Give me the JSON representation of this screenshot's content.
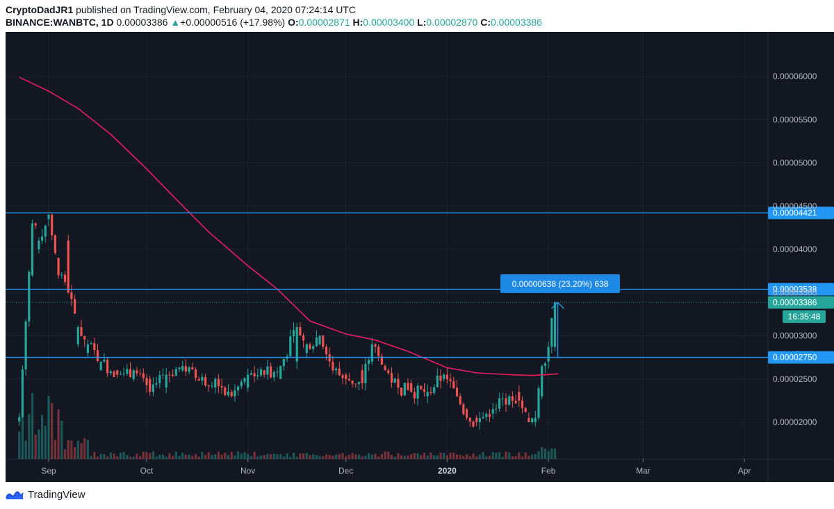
{
  "header": {
    "author": "CryptoDadJR1",
    "published_text": "published on TradingView.com, February 04, 2020 07:24:14 UTC",
    "symbol": "BINANCE:WANBTC, 1D",
    "last_price": "0.00003386",
    "change_arrow": "▲",
    "change": "+0.00000516 (+17.98%)",
    "open_label": "O:",
    "open_value": "0.00002871",
    "high_label": "H:",
    "high_value": "0.00003400",
    "low_label": "L:",
    "low_value": "0.00002870",
    "close_label": "C:",
    "close_value": "0.00003386"
  },
  "footer": {
    "brand": "TradingView",
    "logo_icon": "tradingview-logo-icon"
  },
  "colors": {
    "background": "#131722",
    "grid": "#1e222d",
    "up": "#26a69a",
    "down": "#ef5350",
    "ma_line": "#e91e63",
    "level_line": "#2196f3",
    "measure_tag": "#1e88e5",
    "price_tag": "#26a69a"
  },
  "chart_data": {
    "type": "candlestick",
    "title": "BINANCE:WANBTC, 1D",
    "y_ticks": [
      "0.00006000",
      "0.00005500",
      "0.00005000",
      "0.00004500",
      "0.00004000",
      "0.00003500",
      "0.00003000",
      "0.00002500",
      "0.00002000"
    ],
    "y_tick_values": [
      6e-05,
      5.5e-05,
      5e-05,
      4.5e-05,
      4e-05,
      3.5e-05,
      3e-05,
      2.5e-05,
      2e-05
    ],
    "x_ticks": [
      "Sep",
      "Oct",
      "Nov",
      "Dec",
      "2020",
      "Feb",
      "Mar",
      "Apr"
    ],
    "x_tick_dates": [
      "2019-09-01",
      "2019-10-01",
      "2019-11-01",
      "2019-12-01",
      "2020-01-01",
      "2020-02-01",
      "2020-03-01",
      "2020-04-01"
    ],
    "horizontal_levels": [
      {
        "label": "0.00004421",
        "value": 4.421e-05
      },
      {
        "label": "0.00003538",
        "value": 3.538e-05
      },
      {
        "label": "0.00002750",
        "value": 2.75e-05
      }
    ],
    "last_price_tag": {
      "label": "0.00003386",
      "value": 3.386e-05,
      "countdown": "16:35:48"
    },
    "measure_annotation": "0.00000638 (23.20%) 638",
    "moving_average": [
      [
        "2019-08-23",
        5.99e-05
      ],
      [
        "2019-09-01",
        5.83e-05
      ],
      [
        "2019-09-10",
        5.63e-05
      ],
      [
        "2019-09-20",
        5.33e-05
      ],
      [
        "2019-10-01",
        4.93e-05
      ],
      [
        "2019-10-10",
        4.58e-05
      ],
      [
        "2019-10-20",
        4.2e-05
      ],
      [
        "2019-11-01",
        3.81e-05
      ],
      [
        "2019-11-10",
        3.54e-05
      ],
      [
        "2019-11-20",
        3.17e-05
      ],
      [
        "2019-12-01",
        3.02e-05
      ],
      [
        "2019-12-10",
        2.95e-05
      ],
      [
        "2019-12-20",
        2.82e-05
      ],
      [
        "2020-01-01",
        2.63e-05
      ],
      [
        "2020-01-10",
        2.57e-05
      ],
      [
        "2020-01-20",
        2.55e-05
      ],
      [
        "2020-01-27",
        2.54e-05
      ],
      [
        "2020-02-04",
        2.56e-05
      ]
    ],
    "candle_count": 165,
    "candles_start_date": "2019-08-23",
    "candle_anchors": [
      [
        0,
        2.01e-05,
        2.06e-05
      ],
      [
        4,
        3.7e-05,
        4.3e-05
      ],
      [
        6,
        4e-05,
        4.1e-05
      ],
      [
        9,
        4.35e-05,
        4.4e-05
      ],
      [
        12,
        3.9e-05,
        3.7e-05
      ],
      [
        15,
        4.1e-05,
        3.5e-05
      ],
      [
        18,
        2.9e-05,
        3.1e-05
      ],
      [
        21,
        2.8e-05,
        2.9e-05
      ],
      [
        25,
        2.6e-05,
        2.7e-05
      ],
      [
        30,
        2.6e-05,
        2.55e-05
      ],
      [
        35,
        2.5e-05,
        2.6e-05
      ],
      [
        40,
        2.5e-05,
        2.35e-05
      ],
      [
        45,
        2.4e-05,
        2.55e-05
      ],
      [
        50,
        2.6e-05,
        2.65e-05
      ],
      [
        55,
        2.5e-05,
        2.48e-05
      ],
      [
        60,
        2.4e-05,
        2.5e-05
      ],
      [
        65,
        2.35e-05,
        2.3e-05
      ],
      [
        70,
        2.4e-05,
        2.55e-05
      ],
      [
        75,
        2.6e-05,
        2.55e-05
      ],
      [
        80,
        2.5e-05,
        2.65e-05
      ],
      [
        85,
        2.7e-05,
        3.1e-05
      ],
      [
        88,
        2.8e-05,
        2.9e-05
      ],
      [
        92,
        2.9e-05,
        3e-05
      ],
      [
        96,
        2.7e-05,
        2.6e-05
      ],
      [
        100,
        2.55e-05,
        2.5e-05
      ],
      [
        105,
        2.6e-05,
        2.45e-05
      ],
      [
        108,
        2.7e-05,
        2.9e-05
      ],
      [
        112,
        2.65e-05,
        2.6e-05
      ],
      [
        116,
        2.5e-05,
        2.4e-05
      ],
      [
        120,
        2.45e-05,
        2.35e-05
      ],
      [
        125,
        2.3e-05,
        2.35e-05
      ],
      [
        130,
        2.5e-05,
        2.55e-05
      ],
      [
        134,
        2.4e-05,
        2.3e-05
      ],
      [
        137,
        2.15e-05,
        2.05e-05
      ],
      [
        140,
        2.05e-05,
        2e-05
      ],
      [
        145,
        2.1e-05,
        2.15e-05
      ],
      [
        150,
        2.2e-05,
        2.3e-05
      ],
      [
        153,
        2.35e-05,
        2.25e-05
      ],
      [
        156,
        2.05e-05,
        2e-05
      ],
      [
        158,
        2e-05,
        2.05e-05
      ],
      [
        160,
        2.3e-05,
        2.65e-05
      ],
      [
        162,
        2.7e-05,
        2.871e-05
      ],
      [
        164,
        2.871e-05,
        3.386e-05
      ]
    ]
  }
}
